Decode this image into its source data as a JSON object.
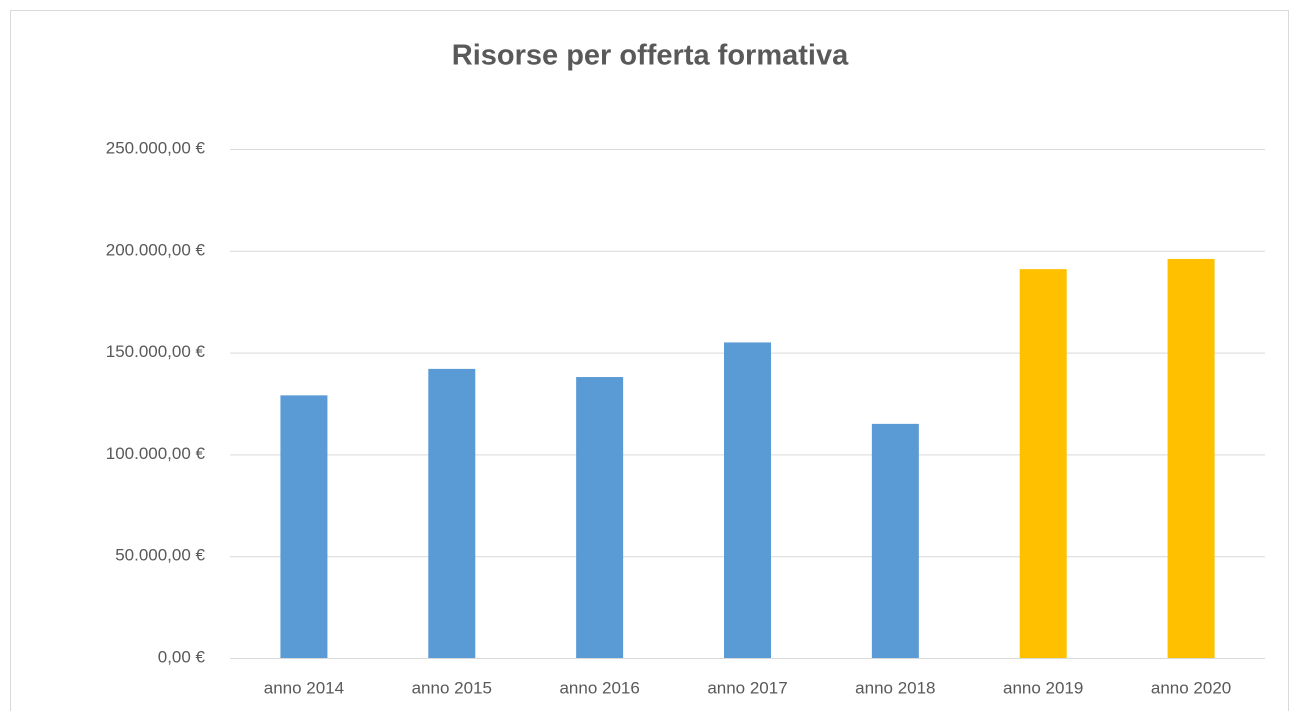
{
  "chart_data": {
    "type": "bar",
    "title": "Risorse per offerta formativa",
    "categories": [
      "anno 2014",
      "anno 2015",
      "anno 2016",
      "anno 2017",
      "anno 2018",
      "anno 2019",
      "anno 2020"
    ],
    "values": [
      129000,
      142000,
      138000,
      155000,
      115000,
      191000,
      196000
    ],
    "colors": [
      "#5b9bd5",
      "#5b9bd5",
      "#5b9bd5",
      "#5b9bd5",
      "#5b9bd5",
      "#ffc000",
      "#ffc000"
    ],
    "ylim": [
      0,
      250000
    ],
    "yticks": [
      {
        "value": 0,
        "label": "0,00 €"
      },
      {
        "value": 50000,
        "label": "50.000,00 €"
      },
      {
        "value": 100000,
        "label": "100.000,00 €"
      },
      {
        "value": 150000,
        "label": "150.000,00 €"
      },
      {
        "value": 200000,
        "label": "200.000,00 €"
      },
      {
        "value": 250000,
        "label": "250.000,00 €"
      }
    ],
    "grid": true
  }
}
